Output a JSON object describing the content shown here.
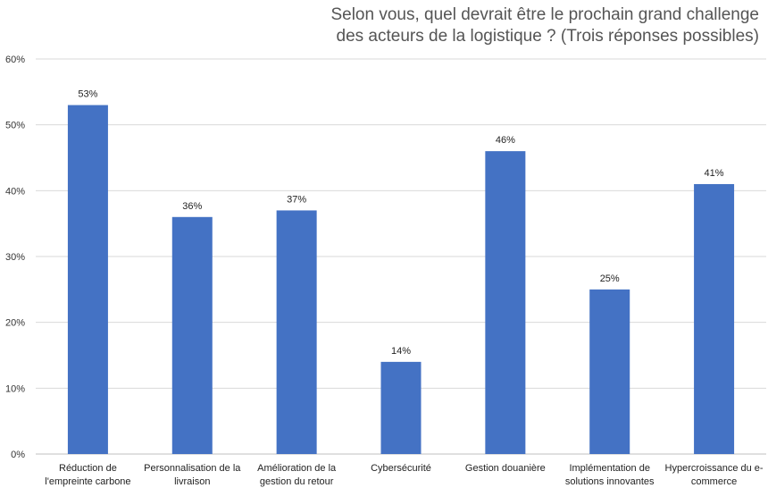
{
  "chart_data": {
    "type": "bar",
    "title_lines": [
      "Selon vous, quel devrait être le prochain grand challenge",
      "des acteurs de la logistique ? (Trois réponses possibles)"
    ],
    "categories": [
      [
        "Réduction de",
        "l'empreinte carbone"
      ],
      [
        "Personnalisation de la",
        "livraison"
      ],
      [
        "Amélioration de la",
        "gestion du retour"
      ],
      [
        "Cybersécurité"
      ],
      [
        "Gestion douanière"
      ],
      [
        "Implémentation de",
        "solutions innovantes"
      ],
      [
        "Hypercroissance du e-",
        "commerce"
      ]
    ],
    "values": [
      53,
      36,
      37,
      14,
      46,
      25,
      41
    ],
    "data_labels": [
      "53%",
      "36%",
      "37%",
      "14%",
      "46%",
      "25%",
      "41%"
    ],
    "y_ticks": [
      0,
      10,
      20,
      30,
      40,
      50,
      60
    ],
    "y_tick_labels": [
      "0%",
      "10%",
      "20%",
      "30%",
      "40%",
      "50%",
      "60%"
    ],
    "ylim": [
      0,
      60
    ],
    "grid": true,
    "legend": "none",
    "colors": {
      "bar": "#4472c4"
    }
  }
}
